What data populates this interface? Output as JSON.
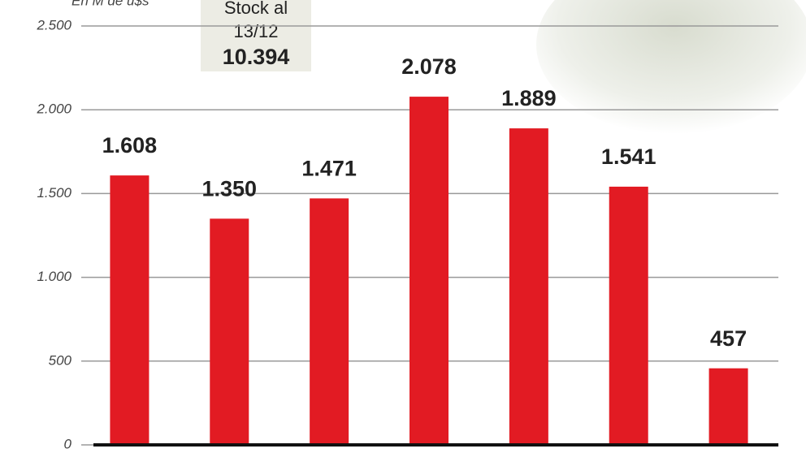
{
  "chart_data": {
    "type": "bar",
    "y_label": "En M de u$s",
    "annotation": {
      "lines": [
        "Stock al",
        "13/12"
      ],
      "total": "10.394"
    },
    "categories": [
      null,
      null,
      null,
      null,
      null,
      null,
      null
    ],
    "values": [
      1608,
      1350,
      1471,
      2078,
      1889,
      1541,
      457
    ],
    "value_labels": [
      "1.608",
      "1.350",
      "1.471",
      "2.078",
      "1.889",
      "1.541",
      "457"
    ],
    "color": "#e21b23",
    "ylim": [
      0,
      2500
    ],
    "yticks": [
      0,
      500,
      {
        "value": 1000,
        "label": "1.000"
      },
      {
        "value": 1500,
        "label": "1.500"
      },
      {
        "value": 2000,
        "label": "2.000"
      },
      {
        "value": 2500,
        "label": "2.500"
      }
    ],
    "grid": true
  }
}
